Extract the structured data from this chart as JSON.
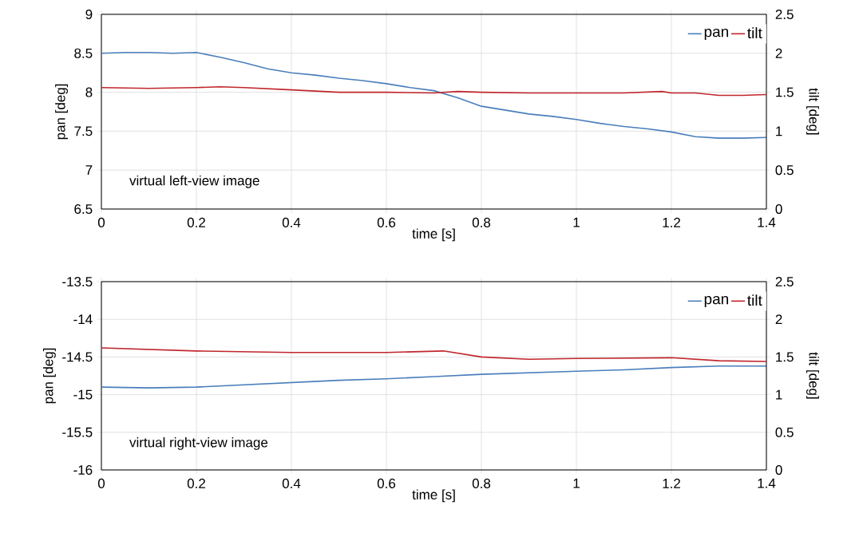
{
  "chart_data": [
    {
      "type": "line",
      "xlabel": "time [s]",
      "ylabel": "pan [deg]",
      "y2label": "tilt [deg]",
      "annotations": [
        "virtual left-view image"
      ],
      "xlim": [
        0,
        1.4
      ],
      "xticks": [
        0,
        0.2,
        0.4,
        0.6,
        0.8,
        1,
        1.2,
        1.4
      ],
      "ylim": [
        6.5,
        9
      ],
      "yticks": [
        6.5,
        7,
        7.5,
        8,
        8.5,
        9
      ],
      "y2lim": [
        0,
        2.5
      ],
      "y2ticks": [
        0,
        0.5,
        1,
        1.5,
        2,
        2.5
      ],
      "grid": true,
      "legend": "top right",
      "line_style": "solid",
      "marker": "none",
      "series": [
        {
          "name": "pan",
          "color": "#4a7ebb",
          "x": [
            0,
            0.05,
            0.1,
            0.15,
            0.2,
            0.25,
            0.3,
            0.35,
            0.4,
            0.45,
            0.5,
            0.55,
            0.6,
            0.65,
            0.7,
            0.75,
            0.8,
            0.85,
            0.9,
            0.95,
            1.0,
            1.05,
            1.1,
            1.15,
            1.2,
            1.25,
            1.3,
            1.35,
            1.4
          ],
          "values": [
            8.5,
            8.51,
            8.51,
            8.5,
            8.51,
            8.45,
            8.38,
            8.3,
            8.25,
            8.22,
            8.18,
            8.15,
            8.11,
            8.06,
            8.02,
            7.93,
            7.82,
            7.77,
            7.72,
            7.69,
            7.65,
            7.6,
            7.56,
            7.53,
            7.49,
            7.43,
            7.41,
            7.41,
            7.42
          ]
        },
        {
          "name": "tilt",
          "color": "#c0262d",
          "axis": "y2",
          "x": [
            0,
            0.1,
            0.2,
            0.25,
            0.3,
            0.4,
            0.5,
            0.6,
            0.7,
            0.75,
            0.8,
            0.9,
            1.0,
            1.1,
            1.18,
            1.2,
            1.25,
            1.3,
            1.35,
            1.4
          ],
          "values": [
            1.56,
            1.55,
            1.56,
            1.57,
            1.56,
            1.53,
            1.5,
            1.5,
            1.49,
            1.51,
            1.5,
            1.49,
            1.49,
            1.49,
            1.51,
            1.49,
            1.49,
            1.46,
            1.46,
            1.47
          ]
        }
      ]
    },
    {
      "type": "line",
      "xlabel": "time [s]",
      "ylabel": "pan [deg]",
      "y2label": "tilt [deg]",
      "annotations": [
        "virtual right-view image"
      ],
      "xlim": [
        0,
        1.4
      ],
      "xticks": [
        0,
        0.2,
        0.4,
        0.6,
        0.8,
        1,
        1.2,
        1.4
      ],
      "ylim": [
        -16,
        -13.5
      ],
      "yticks": [
        -16,
        -15.5,
        -15,
        -14.5,
        -14,
        -13.5
      ],
      "y2lim": [
        0,
        2.5
      ],
      "y2ticks": [
        0,
        0.5,
        1,
        1.5,
        2,
        2.5
      ],
      "grid": true,
      "legend": "top right",
      "line_style": "solid",
      "marker": "none",
      "series": [
        {
          "name": "pan",
          "color": "#4a7ebb",
          "x": [
            0,
            0.1,
            0.2,
            0.3,
            0.4,
            0.5,
            0.6,
            0.7,
            0.8,
            0.9,
            1.0,
            1.1,
            1.2,
            1.3,
            1.4
          ],
          "values": [
            -14.9,
            -14.91,
            -14.9,
            -14.87,
            -14.84,
            -14.81,
            -14.79,
            -14.76,
            -14.73,
            -14.71,
            -14.69,
            -14.67,
            -14.64,
            -14.62,
            -14.62
          ]
        },
        {
          "name": "tilt",
          "color": "#c0262d",
          "axis": "y2",
          "x": [
            0,
            0.2,
            0.4,
            0.6,
            0.72,
            0.8,
            0.9,
            1.0,
            1.2,
            1.3,
            1.4
          ],
          "values": [
            1.62,
            1.58,
            1.56,
            1.56,
            1.58,
            1.5,
            1.47,
            1.48,
            1.49,
            1.45,
            1.44
          ]
        }
      ]
    }
  ]
}
